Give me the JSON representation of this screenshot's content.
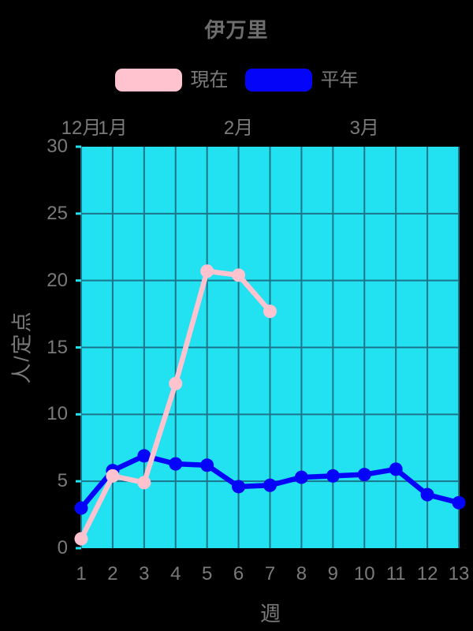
{
  "title": "伊万里",
  "legend": {
    "items": [
      {
        "id": "current",
        "label": "現在",
        "color": "#ffc2cf"
      },
      {
        "id": "normal",
        "label": "平年",
        "color": "#0404f8"
      }
    ]
  },
  "chart_data": {
    "type": "line",
    "title": "伊万里",
    "xlabel": "週",
    "ylabel": "人/定点",
    "x": [
      1,
      2,
      3,
      4,
      5,
      6,
      7,
      8,
      9,
      10,
      11,
      12,
      13
    ],
    "xticks": [
      "1",
      "2",
      "3",
      "4",
      "5",
      "6",
      "7",
      "8",
      "9",
      "10",
      "11",
      "12",
      "13"
    ],
    "ylim": [
      0,
      30
    ],
    "yticks": [
      0,
      5,
      10,
      15,
      20,
      25,
      30
    ],
    "grid": true,
    "legend_position": "top",
    "top_axis_months": [
      {
        "label": "12月",
        "week": 1
      },
      {
        "label": "1月",
        "week": 2
      },
      {
        "label": "2月",
        "week": 6
      },
      {
        "label": "3月",
        "week": 10
      }
    ],
    "series": [
      {
        "id": "normal",
        "name": "平年",
        "color": "#0404f8",
        "values": [
          3.0,
          5.8,
          6.9,
          6.3,
          6.2,
          4.6,
          4.7,
          5.3,
          5.4,
          5.5,
          5.9,
          4.0,
          3.4
        ]
      },
      {
        "id": "current",
        "name": "現在",
        "color": "#ffc2cf",
        "values": [
          0.7,
          5.4,
          4.9,
          12.3,
          20.7,
          20.4,
          17.7
        ]
      }
    ],
    "colors": {
      "page_background": "#000000",
      "plot_background": "#22e2f2",
      "grid_line": "#1b7489",
      "text": "#7a7a7a",
      "title_text": "#6e6e6e"
    }
  }
}
